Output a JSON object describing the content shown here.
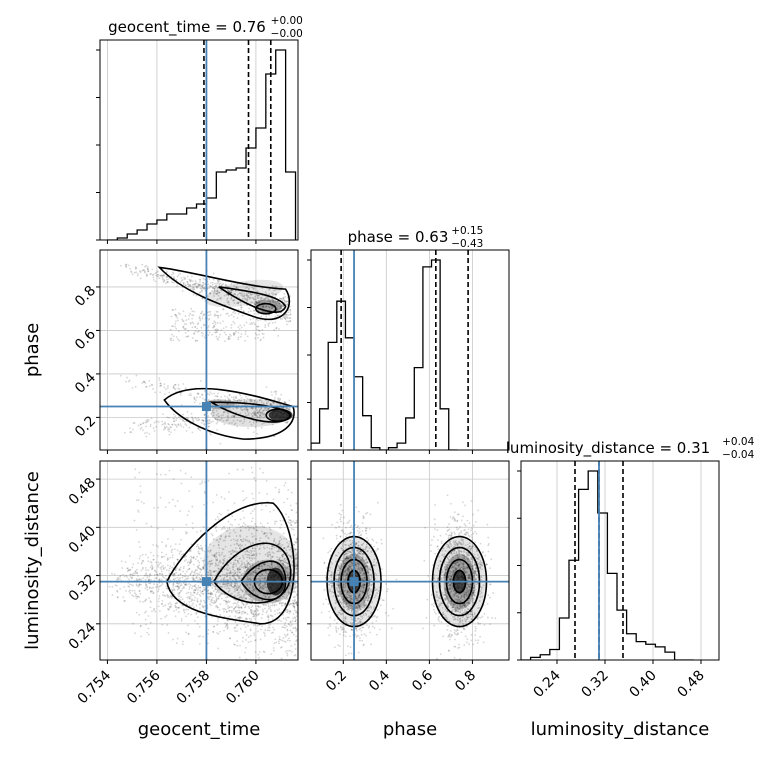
{
  "chart_data": {
    "type": "corner",
    "parameters": [
      "geocent_time",
      "phase",
      "luminosity_distance"
    ],
    "axis_labels": {
      "geocent_time": "geocent_time",
      "phase": "phase",
      "luminosity_distance": "luminosity_distance"
    },
    "ranges": {
      "geocent_time": [
        0.7537,
        0.7617
      ],
      "phase": [
        0.05,
        0.97
      ],
      "luminosity_distance": [
        0.18,
        0.51
      ]
    },
    "truths": {
      "geocent_time": 0.758,
      "phase": 0.25,
      "luminosity_distance": 0.31
    },
    "titles": [
      {
        "param": "geocent_time",
        "text": "geocent_time = 0.76",
        "plus": "+0.00",
        "minus": "−0.00"
      },
      {
        "param": "phase",
        "text": "phase = 0.63",
        "plus": "+0.15",
        "minus": "−0.43"
      },
      {
        "param": "luminosity_distance",
        "text": "luminosity_distance = 0.31",
        "plus": "+0.04",
        "minus": "−0.04"
      }
    ],
    "ticks": {
      "geocent_time": [
        0.754,
        0.756,
        0.758,
        0.76
      ],
      "geocent_time_labels": [
        "0.754",
        "0.756",
        "0.758",
        "0.760"
      ],
      "phase": [
        0.2,
        0.4,
        0.6,
        0.8
      ],
      "phase_labels": [
        "0.2",
        "0.4",
        "0.6",
        "0.8"
      ],
      "luminosity_distance": [
        0.24,
        0.32,
        0.4,
        0.48
      ],
      "luminosity_distance_labels": [
        "0.24",
        "0.32",
        "0.40",
        "0.48"
      ]
    },
    "quantiles": {
      "geocent_time": [
        0.7579,
        0.7597,
        0.7606
      ],
      "phase": [
        0.19,
        0.63,
        0.78
      ],
      "luminosity_distance": [
        0.27,
        0.31,
        0.35
      ]
    },
    "histograms": {
      "geocent_time": {
        "edges_start": 0.754,
        "bin_width": 0.0004,
        "counts": [
          0,
          1,
          3,
          5,
          8,
          10,
          13,
          13,
          16,
          18,
          21,
          34,
          35,
          36,
          46,
          56,
          83,
          95,
          34
        ]
      },
      "phase": {
        "edges_start": 0.05,
        "bin_width": 0.04,
        "counts": [
          3,
          18,
          47,
          65,
          49,
          32,
          15,
          1,
          0,
          1,
          3,
          14,
          36,
          80,
          83,
          18,
          0
        ]
      },
      "luminosity_distance": {
        "edges_start": 0.18,
        "bin_width": 0.016,
        "counts": [
          0,
          1,
          2,
          4,
          16,
          38,
          65,
          72,
          56,
          33,
          19,
          10,
          7,
          6,
          5,
          3,
          0,
          0
        ]
      }
    },
    "grid": true,
    "colors": {
      "truth": "#4682b4",
      "hist": "#000000",
      "quantile": "#000000",
      "scatter": "#000000"
    }
  }
}
